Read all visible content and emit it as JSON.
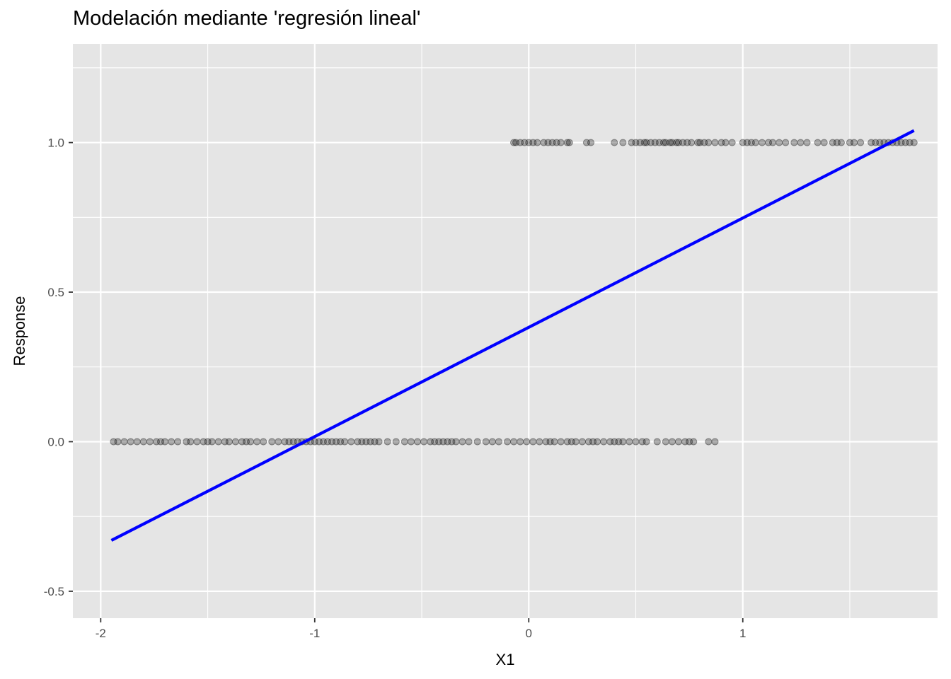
{
  "chart_data": {
    "type": "scatter",
    "title": "Modelación mediante 'regresión lineal'",
    "xlabel": "X1",
    "ylabel": "Response",
    "xlim": [
      -2.13,
      1.91
    ],
    "ylim": [
      -0.59,
      1.33
    ],
    "x_ticks": [
      -2,
      -1,
      0,
      1
    ],
    "x_tick_labels": [
      "-2",
      "-1",
      "0",
      "1"
    ],
    "y_ticks": [
      -0.5,
      0.0,
      0.5,
      1.0
    ],
    "y_tick_labels": [
      "-0.5",
      "0.0",
      "0.5",
      "1.0"
    ],
    "grid": true,
    "legend": "none",
    "colors": {
      "panel_background": "#e5e5e5",
      "grid_line": "#ffffff",
      "points": "#000000",
      "fit_line": "#0000ff"
    },
    "points_y1": [
      -0.07,
      -0.06,
      -0.04,
      -0.02,
      0.0,
      0.02,
      0.04,
      0.07,
      0.09,
      0.11,
      0.13,
      0.15,
      0.18,
      0.19,
      0.27,
      0.29,
      0.4,
      0.44,
      0.48,
      0.5,
      0.52,
      0.54,
      0.55,
      0.57,
      0.59,
      0.61,
      0.63,
      0.64,
      0.66,
      0.67,
      0.69,
      0.7,
      0.72,
      0.74,
      0.76,
      0.79,
      0.8,
      0.82,
      0.84,
      0.87,
      0.9,
      0.92,
      0.95,
      1.0,
      1.02,
      1.04,
      1.06,
      1.09,
      1.12,
      1.14,
      1.17,
      1.2,
      1.24,
      1.27,
      1.3,
      1.35,
      1.38,
      1.42,
      1.44,
      1.46,
      1.5,
      1.52,
      1.55,
      1.6,
      1.62,
      1.64,
      1.66,
      1.68,
      1.7,
      1.72,
      1.74,
      1.76,
      1.78,
      1.8
    ],
    "points_y0": [
      -1.94,
      -1.92,
      -1.89,
      -1.86,
      -1.83,
      -1.8,
      -1.77,
      -1.74,
      -1.72,
      -1.7,
      -1.67,
      -1.64,
      -1.6,
      -1.58,
      -1.55,
      -1.52,
      -1.5,
      -1.48,
      -1.45,
      -1.42,
      -1.4,
      -1.37,
      -1.34,
      -1.32,
      -1.3,
      -1.27,
      -1.24,
      -1.2,
      -1.17,
      -1.14,
      -1.12,
      -1.1,
      -1.08,
      -1.06,
      -1.04,
      -1.02,
      -1.0,
      -0.98,
      -0.96,
      -0.94,
      -0.92,
      -0.9,
      -0.88,
      -0.86,
      -0.83,
      -0.8,
      -0.78,
      -0.76,
      -0.74,
      -0.72,
      -0.7,
      -0.66,
      -0.62,
      -0.58,
      -0.55,
      -0.52,
      -0.49,
      -0.46,
      -0.44,
      -0.42,
      -0.4,
      -0.38,
      -0.36,
      -0.34,
      -0.31,
      -0.28,
      -0.24,
      -0.2,
      -0.17,
      -0.14,
      -0.1,
      -0.07,
      -0.04,
      -0.01,
      0.02,
      0.05,
      0.08,
      0.1,
      0.12,
      0.15,
      0.18,
      0.2,
      0.22,
      0.25,
      0.28,
      0.3,
      0.32,
      0.35,
      0.38,
      0.4,
      0.42,
      0.44,
      0.47,
      0.5,
      0.53,
      0.55,
      0.6,
      0.64,
      0.67,
      0.7,
      0.73,
      0.75,
      0.77,
      0.84,
      0.87
    ],
    "fit_line": {
      "x": [
        -1.95,
        1.8
      ],
      "y": [
        -0.33,
        1.04
      ]
    }
  }
}
